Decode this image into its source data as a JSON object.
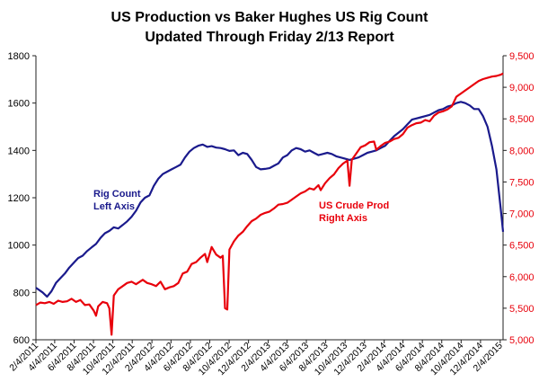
{
  "chart_data": {
    "type": "line",
    "title": "US Production vs Baker Hughes US Rig Count",
    "subtitle": "Updated Through Friday 2/13 Report",
    "left_axis": {
      "min": 600,
      "max": 1800,
      "ticks": [
        600,
        800,
        1000,
        1200,
        1400,
        1600,
        1800
      ],
      "tick_labels": [
        "600",
        "800",
        "1000",
        "1200",
        "1400",
        "1600",
        "1800"
      ]
    },
    "right_axis": {
      "min": 5000,
      "max": 9500,
      "ticks": [
        5000,
        5500,
        6000,
        6500,
        7000,
        7500,
        8000,
        8500,
        9000,
        9500
      ],
      "tick_labels": [
        "5,000",
        "5,500",
        "6,000",
        "6,500",
        "7,000",
        "7,500",
        "8,000",
        "8,500",
        "9,000",
        "9,500"
      ]
    },
    "x_axis": {
      "start": "2011-02-04",
      "end": "2015-02-13",
      "tick_dates": [
        "2011-02-04",
        "2011-04-04",
        "2011-06-04",
        "2011-08-04",
        "2011-10-04",
        "2011-12-04",
        "2012-02-04",
        "2012-04-04",
        "2012-06-04",
        "2012-08-04",
        "2012-10-04",
        "2012-12-04",
        "2013-02-04",
        "2013-04-04",
        "2013-06-04",
        "2013-08-04",
        "2013-10-04",
        "2013-12-04",
        "2014-02-04",
        "2014-04-04",
        "2014-06-04",
        "2014-08-04",
        "2014-10-04",
        "2014-12-04",
        "2015-02-04"
      ],
      "tick_labels": [
        "2/4/2011",
        "4/4/2011",
        "6/4/2011",
        "8/4/2011",
        "10/4/2011",
        "12/4/2011",
        "2/4/2012",
        "4/4/2012",
        "6/4/2012",
        "8/4/2012",
        "10/4/2012",
        "12/4/2012",
        "2/4/2013",
        "4/4/2013",
        "6/4/2013",
        "8/4/2013",
        "10/4/2013",
        "12/4/2013",
        "2/4/2014",
        "4/4/2014",
        "6/4/2014",
        "8/4/2014",
        "10/4/2014",
        "12/4/2014",
        "2/4/2015"
      ]
    },
    "grid": false,
    "legend": "none",
    "annotations": [
      {
        "series": "rig",
        "lines": [
          "Rig Count",
          "Left Axis"
        ]
      },
      {
        "series": "prod",
        "lines": [
          "US Crude Prod",
          "Right Axis"
        ]
      }
    ],
    "series": [
      {
        "id": "rig",
        "axis": "left",
        "color": "#1a1a8c",
        "points": [
          [
            "2011-02-04",
            820
          ],
          [
            "2011-02-25",
            800
          ],
          [
            "2011-03-11",
            782
          ],
          [
            "2011-03-25",
            805
          ],
          [
            "2011-04-08",
            840
          ],
          [
            "2011-04-22",
            860
          ],
          [
            "2011-05-06",
            880
          ],
          [
            "2011-05-20",
            905
          ],
          [
            "2011-06-03",
            925
          ],
          [
            "2011-06-17",
            945
          ],
          [
            "2011-07-01",
            955
          ],
          [
            "2011-07-15",
            975
          ],
          [
            "2011-07-29",
            990
          ],
          [
            "2011-08-12",
            1005
          ],
          [
            "2011-08-26",
            1030
          ],
          [
            "2011-09-09",
            1050
          ],
          [
            "2011-09-23",
            1060
          ],
          [
            "2011-10-07",
            1075
          ],
          [
            "2011-10-21",
            1070
          ],
          [
            "2011-11-04",
            1085
          ],
          [
            "2011-11-18",
            1100
          ],
          [
            "2011-12-02",
            1120
          ],
          [
            "2011-12-16",
            1145
          ],
          [
            "2011-12-30",
            1180
          ],
          [
            "2012-01-13",
            1200
          ],
          [
            "2012-01-27",
            1210
          ],
          [
            "2012-02-10",
            1250
          ],
          [
            "2012-02-24",
            1280
          ],
          [
            "2012-03-09",
            1300
          ],
          [
            "2012-03-23",
            1310
          ],
          [
            "2012-04-06",
            1320
          ],
          [
            "2012-04-20",
            1330
          ],
          [
            "2012-05-04",
            1340
          ],
          [
            "2012-05-18",
            1370
          ],
          [
            "2012-06-01",
            1395
          ],
          [
            "2012-06-15",
            1410
          ],
          [
            "2012-06-29",
            1420
          ],
          [
            "2012-07-13",
            1425
          ],
          [
            "2012-07-27",
            1415
          ],
          [
            "2012-08-10",
            1418
          ],
          [
            "2012-08-24",
            1412
          ],
          [
            "2012-09-07",
            1410
          ],
          [
            "2012-09-21",
            1405
          ],
          [
            "2012-10-05",
            1398
          ],
          [
            "2012-10-19",
            1400
          ],
          [
            "2012-11-02",
            1380
          ],
          [
            "2012-11-16",
            1390
          ],
          [
            "2012-11-30",
            1385
          ],
          [
            "2012-12-14",
            1360
          ],
          [
            "2012-12-28",
            1330
          ],
          [
            "2013-01-11",
            1320
          ],
          [
            "2013-01-25",
            1322
          ],
          [
            "2013-02-08",
            1325
          ],
          [
            "2013-02-22",
            1335
          ],
          [
            "2013-03-08",
            1345
          ],
          [
            "2013-03-22",
            1370
          ],
          [
            "2013-04-05",
            1380
          ],
          [
            "2013-04-19",
            1400
          ],
          [
            "2013-05-03",
            1410
          ],
          [
            "2013-05-17",
            1405
          ],
          [
            "2013-05-31",
            1395
          ],
          [
            "2013-06-14",
            1400
          ],
          [
            "2013-06-28",
            1390
          ],
          [
            "2013-07-12",
            1380
          ],
          [
            "2013-07-26",
            1385
          ],
          [
            "2013-08-09",
            1390
          ],
          [
            "2013-08-23",
            1385
          ],
          [
            "2013-09-06",
            1375
          ],
          [
            "2013-09-20",
            1370
          ],
          [
            "2013-10-04",
            1365
          ],
          [
            "2013-10-18",
            1360
          ],
          [
            "2013-11-01",
            1365
          ],
          [
            "2013-11-15",
            1370
          ],
          [
            "2013-11-29",
            1380
          ],
          [
            "2013-12-13",
            1390
          ],
          [
            "2013-12-27",
            1395
          ],
          [
            "2014-01-10",
            1400
          ],
          [
            "2014-01-24",
            1410
          ],
          [
            "2014-02-07",
            1420
          ],
          [
            "2014-02-21",
            1440
          ],
          [
            "2014-03-07",
            1460
          ],
          [
            "2014-03-21",
            1475
          ],
          [
            "2014-04-04",
            1490
          ],
          [
            "2014-04-18",
            1510
          ],
          [
            "2014-05-02",
            1530
          ],
          [
            "2014-05-16",
            1535
          ],
          [
            "2014-05-30",
            1540
          ],
          [
            "2014-06-13",
            1545
          ],
          [
            "2014-06-27",
            1550
          ],
          [
            "2014-07-11",
            1560
          ],
          [
            "2014-07-25",
            1570
          ],
          [
            "2014-08-08",
            1575
          ],
          [
            "2014-08-22",
            1585
          ],
          [
            "2014-09-05",
            1590
          ],
          [
            "2014-09-19",
            1600
          ],
          [
            "2014-10-03",
            1605
          ],
          [
            "2014-10-17",
            1600
          ],
          [
            "2014-10-31",
            1590
          ],
          [
            "2014-11-14",
            1575
          ],
          [
            "2014-11-28",
            1575
          ],
          [
            "2014-12-12",
            1545
          ],
          [
            "2014-12-26",
            1500
          ],
          [
            "2015-01-09",
            1420
          ],
          [
            "2015-01-23",
            1320
          ],
          [
            "2015-02-06",
            1150
          ],
          [
            "2015-02-13",
            1056
          ]
        ]
      },
      {
        "id": "prod",
        "axis": "right",
        "color": "#e8000b",
        "points": [
          [
            "2011-02-04",
            5550
          ],
          [
            "2011-02-18",
            5590
          ],
          [
            "2011-03-04",
            5580
          ],
          [
            "2011-03-18",
            5600
          ],
          [
            "2011-04-01",
            5570
          ],
          [
            "2011-04-15",
            5620
          ],
          [
            "2011-04-29",
            5600
          ],
          [
            "2011-05-13",
            5610
          ],
          [
            "2011-05-27",
            5650
          ],
          [
            "2011-06-10",
            5600
          ],
          [
            "2011-06-24",
            5630
          ],
          [
            "2011-07-08",
            5550
          ],
          [
            "2011-07-22",
            5560
          ],
          [
            "2011-08-05",
            5460
          ],
          [
            "2011-08-12",
            5380
          ],
          [
            "2011-08-19",
            5530
          ],
          [
            "2011-09-02",
            5600
          ],
          [
            "2011-09-16",
            5580
          ],
          [
            "2011-09-23",
            5500
          ],
          [
            "2011-09-30",
            5080
          ],
          [
            "2011-10-07",
            5700
          ],
          [
            "2011-10-21",
            5800
          ],
          [
            "2011-11-04",
            5850
          ],
          [
            "2011-11-18",
            5900
          ],
          [
            "2011-12-02",
            5920
          ],
          [
            "2011-12-16",
            5880
          ],
          [
            "2012-01-06",
            5950
          ],
          [
            "2012-01-20",
            5900
          ],
          [
            "2012-02-03",
            5880
          ],
          [
            "2012-02-17",
            5850
          ],
          [
            "2012-03-02",
            5920
          ],
          [
            "2012-03-16",
            5800
          ],
          [
            "2012-03-30",
            5830
          ],
          [
            "2012-04-13",
            5850
          ],
          [
            "2012-04-27",
            5900
          ],
          [
            "2012-05-11",
            6050
          ],
          [
            "2012-05-25",
            6080
          ],
          [
            "2012-06-08",
            6200
          ],
          [
            "2012-06-22",
            6230
          ],
          [
            "2012-07-06",
            6300
          ],
          [
            "2012-07-20",
            6360
          ],
          [
            "2012-07-27",
            6230
          ],
          [
            "2012-08-10",
            6470
          ],
          [
            "2012-08-24",
            6350
          ],
          [
            "2012-09-07",
            6300
          ],
          [
            "2012-09-14",
            6330
          ],
          [
            "2012-09-21",
            5500
          ],
          [
            "2012-09-28",
            5480
          ],
          [
            "2012-10-05",
            6430
          ],
          [
            "2012-10-19",
            6560
          ],
          [
            "2012-11-02",
            6650
          ],
          [
            "2012-11-16",
            6710
          ],
          [
            "2012-11-30",
            6800
          ],
          [
            "2012-12-14",
            6880
          ],
          [
            "2012-12-28",
            6920
          ],
          [
            "2013-01-11",
            6980
          ],
          [
            "2013-01-25",
            7010
          ],
          [
            "2013-02-08",
            7030
          ],
          [
            "2013-02-22",
            7080
          ],
          [
            "2013-03-08",
            7140
          ],
          [
            "2013-03-22",
            7150
          ],
          [
            "2013-04-05",
            7170
          ],
          [
            "2013-04-19",
            7220
          ],
          [
            "2013-05-03",
            7270
          ],
          [
            "2013-05-17",
            7320
          ],
          [
            "2013-05-31",
            7350
          ],
          [
            "2013-06-14",
            7400
          ],
          [
            "2013-06-28",
            7380
          ],
          [
            "2013-07-12",
            7450
          ],
          [
            "2013-07-19",
            7370
          ],
          [
            "2013-08-02",
            7480
          ],
          [
            "2013-08-16",
            7560
          ],
          [
            "2013-08-30",
            7620
          ],
          [
            "2013-09-13",
            7720
          ],
          [
            "2013-09-27",
            7790
          ],
          [
            "2013-10-11",
            7840
          ],
          [
            "2013-10-18",
            7440
          ],
          [
            "2013-10-25",
            7850
          ],
          [
            "2013-11-08",
            7950
          ],
          [
            "2013-11-22",
            8050
          ],
          [
            "2013-12-06",
            8080
          ],
          [
            "2013-12-20",
            8130
          ],
          [
            "2014-01-03",
            8140
          ],
          [
            "2014-01-10",
            8010
          ],
          [
            "2014-01-24",
            8070
          ],
          [
            "2014-02-07",
            8120
          ],
          [
            "2014-02-21",
            8140
          ],
          [
            "2014-03-07",
            8180
          ],
          [
            "2014-03-21",
            8200
          ],
          [
            "2014-04-04",
            8260
          ],
          [
            "2014-04-18",
            8360
          ],
          [
            "2014-05-02",
            8400
          ],
          [
            "2014-05-16",
            8430
          ],
          [
            "2014-05-30",
            8440
          ],
          [
            "2014-06-13",
            8480
          ],
          [
            "2014-06-27",
            8460
          ],
          [
            "2014-07-11",
            8550
          ],
          [
            "2014-07-25",
            8600
          ],
          [
            "2014-08-08",
            8620
          ],
          [
            "2014-08-22",
            8650
          ],
          [
            "2014-09-05",
            8700
          ],
          [
            "2014-09-19",
            8850
          ],
          [
            "2014-10-03",
            8900
          ],
          [
            "2014-10-17",
            8950
          ],
          [
            "2014-10-31",
            9000
          ],
          [
            "2014-11-14",
            9050
          ],
          [
            "2014-11-28",
            9100
          ],
          [
            "2014-12-12",
            9130
          ],
          [
            "2014-12-26",
            9150
          ],
          [
            "2015-01-09",
            9170
          ],
          [
            "2015-01-23",
            9180
          ],
          [
            "2015-02-06",
            9200
          ],
          [
            "2015-02-13",
            9220
          ]
        ]
      }
    ]
  }
}
